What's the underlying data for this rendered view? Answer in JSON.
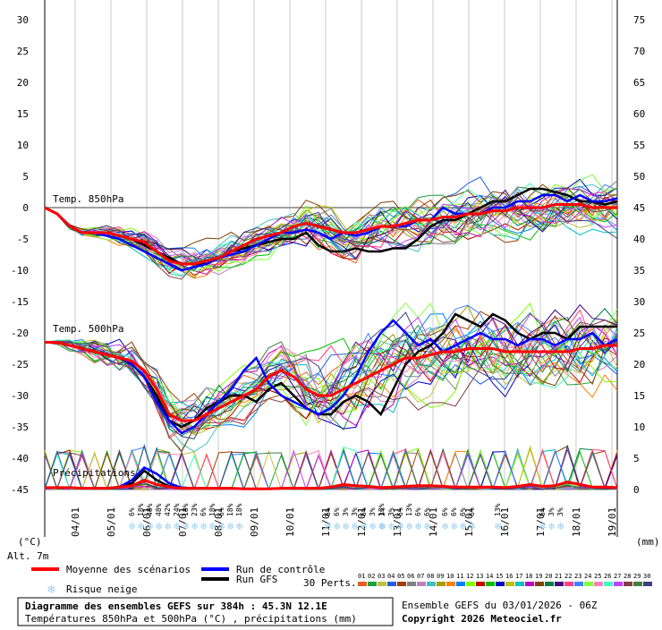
{
  "chart_data": {
    "type": "line",
    "left_axis_label": "(°C)",
    "right_axis_label": "(mm)",
    "altitude": "Alt. 7m",
    "left_ticks": [
      "30",
      "25",
      "20",
      "15",
      "10",
      "5",
      "0",
      "-5",
      "-10",
      "-15",
      "-20",
      "-25",
      "-30",
      "-35",
      "-40",
      "-45"
    ],
    "right_ticks": [
      "75",
      "70",
      "65",
      "60",
      "55",
      "50",
      "45",
      "40",
      "35",
      "30",
      "25",
      "20",
      "15",
      "10",
      "5",
      "0"
    ],
    "ylim": [
      -45,
      30
    ],
    "x_dates": [
      "04/01",
      "05/01",
      "06/01",
      "07/01",
      "08/01",
      "09/01",
      "10/01",
      "11/01",
      "12/01",
      "13/01",
      "14/01",
      "15/01",
      "16/01",
      "17/01",
      "18/01",
      "19/01"
    ],
    "sections": [
      {
        "name": "Temp. 850hPa"
      },
      {
        "name": "Temp. 500hPa"
      },
      {
        "name": "Précipitations"
      }
    ],
    "series": [
      {
        "name": "Moyenne des scénarios",
        "color": "#ff0000",
        "t850": [
          0,
          -1,
          -3,
          -4,
          -4,
          -4,
          -4.5,
          -5,
          -5.5,
          -7,
          -8.5,
          -9,
          -9,
          -8.5,
          -8,
          -7,
          -6,
          -5,
          -4.5,
          -4,
          -3,
          -2.5,
          -3,
          -3.5,
          -4,
          -4,
          -3.5,
          -3,
          -3,
          -2.5,
          -2,
          -2,
          -1.5,
          -1.5,
          -1,
          -1,
          -0.5,
          -0.5,
          0,
          0,
          0,
          0.5,
          0.5,
          0.5,
          0,
          0,
          0
        ],
        "t500": [
          -21.5,
          -21.5,
          -22,
          -22.5,
          -23,
          -23.5,
          -24,
          -24.5,
          -26,
          -29,
          -33,
          -34,
          -34,
          -33,
          -32,
          -31,
          -30,
          -29,
          -27,
          -26,
          -27,
          -29,
          -30,
          -30,
          -29,
          -28,
          -27,
          -26,
          -25,
          -24,
          -24,
          -23.5,
          -23,
          -23,
          -22.5,
          -22.5,
          -22.5,
          -23,
          -23,
          -23,
          -23,
          -23,
          -23,
          -22.5,
          -22.5,
          -22,
          -22
        ],
        "precip": [
          0.3,
          0.3,
          0.3,
          0.2,
          0.2,
          0.2,
          0.4,
          0.6,
          1.5,
          0.8,
          0.4,
          0.2,
          0.2,
          0.2,
          0.2,
          0.2,
          0.1,
          0.1,
          0.1,
          0.2,
          0.2,
          0.2,
          0.2,
          0.4,
          0.8,
          0.6,
          0.5,
          0.3,
          0.4,
          0.5,
          0.6,
          0.6,
          0.5,
          0.4,
          0.4,
          0.4,
          0.4,
          0.3,
          0.5,
          0.8,
          0.5,
          0.6,
          1.2,
          0.8,
          0.4,
          0.4,
          0.3
        ]
      },
      {
        "name": "Run de contrôle",
        "color": "#0000ff",
        "t850": [
          0,
          -1,
          -3,
          -4,
          -4,
          -4.5,
          -5,
          -6,
          -7,
          -8,
          -9,
          -10,
          -9.5,
          -9,
          -8,
          -7.5,
          -7,
          -6,
          -5,
          -4,
          -4,
          -3.5,
          -4,
          -5,
          -4,
          -4.5,
          -4,
          -3,
          -3,
          -3,
          -2,
          -2,
          0,
          -1,
          -1,
          -1,
          0,
          0,
          1,
          1,
          2,
          2,
          1,
          2,
          1,
          1,
          1.5
        ],
        "t500": [
          -21.5,
          -21.5,
          -22,
          -22.5,
          -23,
          -23.5,
          -24,
          -25,
          -27,
          -31,
          -34,
          -36,
          -35,
          -33,
          -31,
          -29,
          -26,
          -24,
          -28,
          -30,
          -31,
          -32,
          -33,
          -32,
          -30,
          -27,
          -23,
          -20,
          -18,
          -20,
          -22,
          -21,
          -23,
          -22,
          -21,
          -20,
          -21,
          -21,
          -22,
          -21,
          -21,
          -22,
          -21,
          -21,
          -20,
          -22,
          -21
        ],
        "precip": [
          0.3,
          0.3,
          0.3,
          0.2,
          0.2,
          0.2,
          0.4,
          1.5,
          3.5,
          2.5,
          1,
          0.3,
          0.2,
          0.2,
          0.2,
          0.2,
          0.1,
          0.1,
          0.1,
          0.2,
          0.2,
          0.2,
          0.2,
          0.4,
          0.8,
          0.6,
          0.5,
          0.3,
          0.4,
          0.5,
          0.6,
          0.6,
          0.5,
          0.4,
          0.4,
          0.4,
          0.4,
          0.3,
          0.5,
          0.8,
          0.5,
          0.6,
          1.2,
          0.8,
          0.4,
          0.4,
          0.3
        ]
      },
      {
        "name": "Run GFS",
        "color": "#000000",
        "t850": [
          0,
          -1,
          -3,
          -4,
          -4,
          -4,
          -4.5,
          -5,
          -6,
          -7,
          -8,
          -9,
          -9,
          -9,
          -8,
          -7,
          -6.5,
          -6,
          -5.5,
          -5,
          -5,
          -4,
          -6,
          -7,
          -7,
          -6.5,
          -7,
          -7,
          -6.5,
          -6.5,
          -5,
          -3,
          -2,
          -2,
          -1,
          0,
          1,
          1,
          2,
          3,
          3,
          2.5,
          2,
          1,
          1,
          0.5,
          1
        ],
        "t500": [
          -21.5,
          -21.5,
          -22,
          -22.5,
          -23,
          -23.5,
          -24,
          -25,
          -27,
          -30,
          -34,
          -35,
          -34,
          -32,
          -31,
          -30,
          -30,
          -31,
          -29,
          -28,
          -30,
          -32,
          -33,
          -33,
          -31,
          -30,
          -31,
          -33,
          -29,
          -25,
          -23,
          -22,
          -20,
          -17,
          -18,
          -19,
          -17,
          -18,
          -20,
          -21,
          -20,
          -20,
          -21,
          -19,
          -19,
          -19,
          -19
        ],
        "precip": [
          0.3,
          0.3,
          0.3,
          0.2,
          0.2,
          0.2,
          0.4,
          1.0,
          3.0,
          1.5,
          0.5,
          0.3,
          0.2,
          0.2,
          0.2,
          0.2,
          0.1,
          0.1,
          0.1,
          0.2,
          0.2,
          0.2,
          0.2,
          0.4,
          0.8,
          0.6,
          0.5,
          0.3,
          0.4,
          0.5,
          0.6,
          0.6,
          0.5,
          0.4,
          0.4,
          0.4,
          0.4,
          0.3,
          0.5,
          0.8,
          0.5,
          0.6,
          1.2,
          0.8,
          0.4,
          0.4,
          0.3
        ]
      }
    ],
    "snow_risk_markers": [
      {
        "label": "6%"
      },
      {
        "label": "18%"
      },
      {
        "label": "48%"
      },
      {
        "label": "48%"
      },
      {
        "label": "42%"
      },
      {
        "label": "24%"
      },
      {
        "label": "18%"
      },
      {
        "label": "23%"
      },
      {
        "label": "6%"
      },
      {
        "label": "18%"
      },
      {
        "label": "6%"
      },
      {
        "label": "18%"
      },
      {
        "label": "18%"
      },
      {
        "label": "6%"
      },
      {
        "label": "6%"
      },
      {
        "label": "3%"
      },
      {
        "label": "3%"
      },
      {
        "label": "6%"
      },
      {
        "label": "3%"
      },
      {
        "label": "13%"
      },
      {
        "label": "3%"
      },
      {
        "label": "3%"
      },
      {
        "label": "6%"
      },
      {
        "label": "13%"
      },
      {
        "label": "6%"
      },
      {
        "label": "6%"
      },
      {
        "label": "6%"
      },
      {
        "label": "6%"
      },
      {
        "label": "6%"
      },
      {
        "label": "6%"
      },
      {
        "label": "13%"
      },
      {
        "label": "6%"
      },
      {
        "label": "3%"
      },
      {
        "label": "3%"
      },
      {
        "label": "3%"
      },
      {
        "label": "3%"
      },
      {
        "label": "10%"
      },
      {
        "label": "3%"
      },
      {
        "label": "3%"
      }
    ],
    "ensemble_member_count_label": "30 Perts.",
    "ensemble_members": [
      "01",
      "02",
      "03",
      "04",
      "05",
      "06",
      "07",
      "08",
      "09",
      "10",
      "11",
      "12",
      "13",
      "14",
      "15",
      "16",
      "17",
      "18",
      "19",
      "20",
      "21",
      "22",
      "23",
      "24",
      "25",
      "26",
      "27",
      "28",
      "29",
      "30"
    ],
    "ensemble_colors": [
      "#e06020",
      "#20a040",
      "#c0c040",
      "#2060e0",
      "#a04000",
      "#808080",
      "#c080c0",
      "#40c0c0",
      "#a0a000",
      "#ff8000",
      "#0080ff",
      "#80ff00",
      "#c00000",
      "#00c000",
      "#0000c0",
      "#c0c000",
      "#00c0c0",
      "#c000c0",
      "#804000",
      "#008040",
      "#400080",
      "#ff4080",
      "#4080ff",
      "#80ff40",
      "#ff80c0",
      "#40ffc0",
      "#c040ff",
      "#804040",
      "#408040",
      "#404080"
    ]
  },
  "legend": {
    "mean": "Moyenne des scénarios",
    "control": "Run de contrôle",
    "gfs": "Run GFS",
    "snow": "Risque neige"
  },
  "footer": {
    "title": "Diagramme des ensembles GEFS sur 384h : 45.3N 12.1E",
    "subtitle": "Températures 850hPa et 500hPa (°C) , précipitations (mm)",
    "ensemble_run": "Ensemble GEFS du 03/01/2026 - 06Z",
    "copyright": "Copyright 2026 Meteociel.fr"
  },
  "colors": {
    "mean": "#ff0000",
    "control": "#0000ff",
    "gfs": "#000000",
    "grid": "#c8c8c8",
    "snow": "#9cd0f0"
  }
}
